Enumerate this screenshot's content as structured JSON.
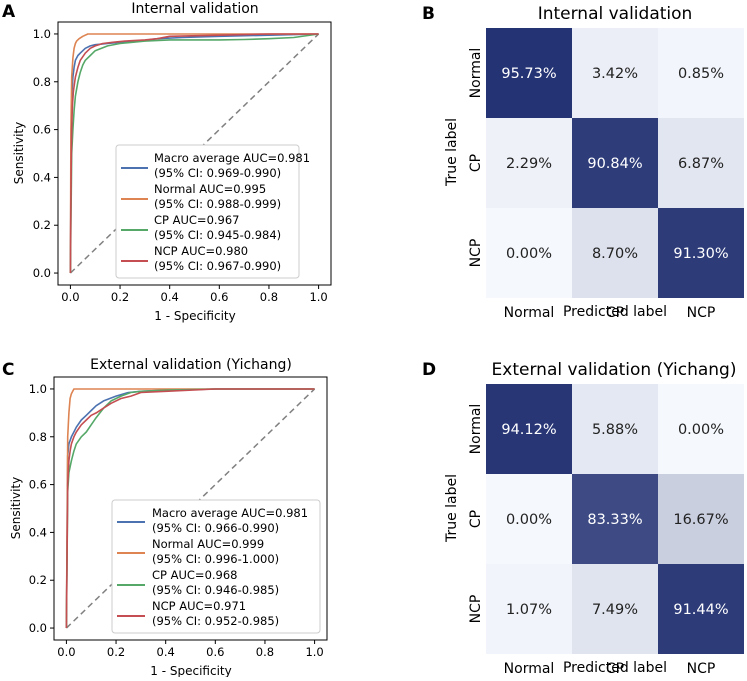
{
  "panel_letters": [
    "A",
    "B",
    "C",
    "D"
  ],
  "colors": {
    "macro": "#4c72b0",
    "normal": "#dd8452",
    "cp": "#55a868",
    "ncp": "#c44e52",
    "diag": "#808080",
    "cm_dark": "#1c2b6e",
    "cm_light": "#f5f8fd"
  },
  "chart_data": [
    {
      "type": "line",
      "panel": "A",
      "title": "Internal validation",
      "xlabel": "1 - Specificity",
      "ylabel": "Sensitivity",
      "xlim": [
        0,
        1
      ],
      "ylim": [
        0,
        1
      ],
      "xticks": [
        "0.0",
        "0.2",
        "0.4",
        "0.6",
        "0.8",
        "1.0"
      ],
      "yticks": [
        "0.0",
        "0.2",
        "0.4",
        "0.6",
        "0.8",
        "1.0"
      ],
      "legend_position": "lower-right",
      "series": [
        {
          "name": "Macro average AUC=0.981",
          "ci": "(95% CI: 0.969-0.990)",
          "color_key": "macro",
          "x": [
            0,
            0.003,
            0.006,
            0.01,
            0.015,
            0.02,
            0.03,
            0.04,
            0.06,
            0.08,
            0.1,
            0.15,
            0.2,
            0.28,
            0.35,
            0.45,
            0.6,
            0.8,
            1.0
          ],
          "y": [
            0,
            0.6,
            0.75,
            0.82,
            0.86,
            0.89,
            0.91,
            0.92,
            0.94,
            0.95,
            0.955,
            0.96,
            0.965,
            0.97,
            0.98,
            0.985,
            0.99,
            0.995,
            1.0
          ]
        },
        {
          "name": "Normal AUC=0.995",
          "ci": "(95% CI: 0.988-0.999)",
          "color_key": "normal",
          "x": [
            0,
            0.002,
            0.005,
            0.01,
            0.015,
            0.02,
            0.025,
            0.035,
            0.05,
            0.07,
            0.2,
            0.4,
            0.6,
            0.8,
            1.0
          ],
          "y": [
            0,
            0.6,
            0.82,
            0.9,
            0.94,
            0.96,
            0.97,
            0.98,
            0.99,
            1.0,
            1.0,
            1.0,
            1.0,
            1.0,
            1.0
          ]
        },
        {
          "name": "CP AUC=0.967",
          "ci": "(95% CI: 0.945-0.984)",
          "color_key": "cp",
          "x": [
            0,
            0.005,
            0.01,
            0.015,
            0.02,
            0.03,
            0.04,
            0.05,
            0.06,
            0.08,
            0.1,
            0.15,
            0.2,
            0.3,
            0.4,
            0.5,
            0.6,
            0.7,
            0.8,
            0.9,
            1.0
          ],
          "y": [
            0,
            0.5,
            0.6,
            0.68,
            0.74,
            0.8,
            0.84,
            0.87,
            0.89,
            0.91,
            0.93,
            0.95,
            0.96,
            0.97,
            0.975,
            0.975,
            0.975,
            0.977,
            0.98,
            0.985,
            1.0
          ]
        },
        {
          "name": "NCP AUC=0.980",
          "ci": "(95% CI: 0.967-0.990)",
          "color_key": "ncp",
          "x": [
            0,
            0.003,
            0.005,
            0.008,
            0.012,
            0.02,
            0.03,
            0.04,
            0.06,
            0.08,
            0.1,
            0.13,
            0.17,
            0.22,
            0.3,
            0.35,
            0.4,
            0.6,
            0.8,
            1.0
          ],
          "y": [
            0,
            0.45,
            0.6,
            0.7,
            0.76,
            0.82,
            0.86,
            0.89,
            0.92,
            0.94,
            0.95,
            0.96,
            0.965,
            0.97,
            0.975,
            0.98,
            0.99,
            0.995,
            1.0,
            1.0
          ]
        }
      ]
    },
    {
      "type": "heatmap",
      "panel": "B",
      "title": "Internal validation",
      "xlabel": "Predicted label",
      "ylabel": "True label",
      "labels": [
        "Normal",
        "CP",
        "NCP"
      ],
      "values": [
        [
          95.73,
          3.42,
          0.85
        ],
        [
          2.29,
          90.84,
          6.87
        ],
        [
          0.0,
          8.7,
          91.3
        ]
      ],
      "cell_text": [
        [
          "95.73%",
          "3.42%",
          "0.85%"
        ],
        [
          "2.29%",
          "90.84%",
          "6.87%"
        ],
        [
          "0.00%",
          "8.70%",
          "91.30%"
        ]
      ]
    },
    {
      "type": "line",
      "panel": "C",
      "title": "External validation (Yichang)",
      "xlabel": "1 - Specificity",
      "ylabel": "Sensitivity",
      "xlim": [
        0,
        1
      ],
      "ylim": [
        0,
        1
      ],
      "xticks": [
        "0.0",
        "0.2",
        "0.4",
        "0.6",
        "0.8",
        "1.0"
      ],
      "yticks": [
        "0.0",
        "0.2",
        "0.4",
        "0.6",
        "0.8",
        "1.0"
      ],
      "legend_position": "lower-right",
      "series": [
        {
          "name": "Macro average AUC=0.981",
          "ci": "(95% CI: 0.966-0.990)",
          "color_key": "macro",
          "x": [
            0,
            0.005,
            0.01,
            0.02,
            0.03,
            0.04,
            0.06,
            0.08,
            0.1,
            0.12,
            0.15,
            0.2,
            0.25,
            0.3,
            0.4,
            0.6,
            0.8,
            1.0
          ],
          "y": [
            0,
            0.72,
            0.77,
            0.8,
            0.82,
            0.84,
            0.87,
            0.89,
            0.91,
            0.93,
            0.95,
            0.97,
            0.985,
            0.99,
            0.995,
            1.0,
            1.0,
            1.0
          ]
        },
        {
          "name": "Normal AUC=0.999",
          "ci": "(95% CI: 0.996-1.000)",
          "color_key": "normal",
          "x": [
            0,
            0.005,
            0.01,
            0.015,
            0.02,
            0.03,
            0.3,
            0.6,
            1.0
          ],
          "y": [
            0,
            0.8,
            0.9,
            0.96,
            0.98,
            1.0,
            1.0,
            1.0,
            1.0
          ]
        },
        {
          "name": "CP AUC=0.968",
          "ci": "(95% CI: 0.946-0.985)",
          "color_key": "cp",
          "x": [
            0,
            0.005,
            0.01,
            0.02,
            0.03,
            0.04,
            0.06,
            0.08,
            0.1,
            0.12,
            0.15,
            0.18,
            0.22,
            0.26,
            0.3,
            0.4,
            0.6,
            0.8,
            1.0
          ],
          "y": [
            0,
            0.57,
            0.65,
            0.7,
            0.74,
            0.77,
            0.8,
            0.82,
            0.85,
            0.88,
            0.92,
            0.95,
            0.97,
            0.985,
            0.99,
            0.995,
            1.0,
            1.0,
            1.0
          ]
        },
        {
          "name": "NCP AUC=0.971",
          "ci": "(95% CI: 0.952-0.985)",
          "color_key": "ncp",
          "x": [
            0,
            0.005,
            0.01,
            0.015,
            0.02,
            0.03,
            0.04,
            0.06,
            0.08,
            0.1,
            0.12,
            0.15,
            0.18,
            0.22,
            0.26,
            0.3,
            0.4,
            0.6,
            0.8,
            1.0
          ],
          "y": [
            0,
            0.6,
            0.7,
            0.74,
            0.77,
            0.8,
            0.82,
            0.85,
            0.87,
            0.89,
            0.9,
            0.92,
            0.94,
            0.96,
            0.97,
            0.985,
            0.99,
            1.0,
            1.0,
            1.0
          ]
        }
      ]
    },
    {
      "type": "heatmap",
      "panel": "D",
      "title": "External validation (Yichang)",
      "xlabel": "Predicted label",
      "ylabel": "True label",
      "labels": [
        "Normal",
        "CP",
        "NCP"
      ],
      "values": [
        [
          94.12,
          5.88,
          0.0
        ],
        [
          0.0,
          83.33,
          16.67
        ],
        [
          1.07,
          7.49,
          91.44
        ]
      ],
      "cell_text": [
        [
          "94.12%",
          "5.88%",
          "0.00%"
        ],
        [
          "0.00%",
          "83.33%",
          "16.67%"
        ],
        [
          "1.07%",
          "7.49%",
          "91.44%"
        ]
      ]
    }
  ]
}
